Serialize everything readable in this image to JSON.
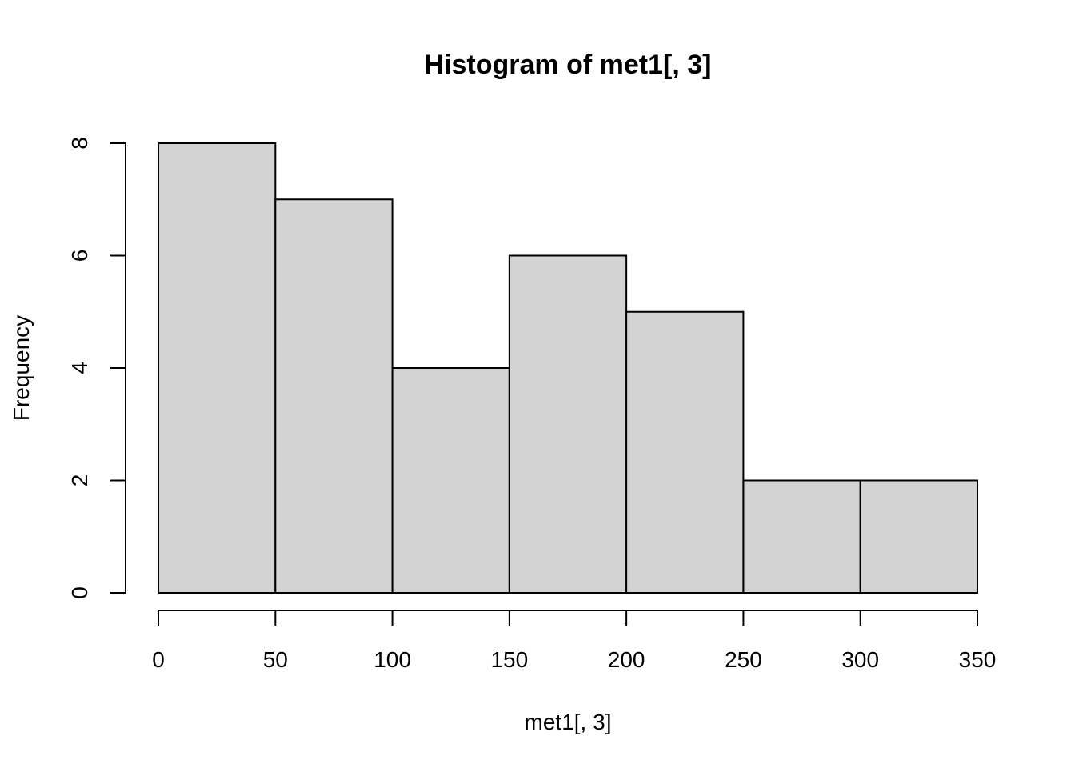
{
  "chart_data": {
    "type": "bar",
    "title": "Histogram of met1[, 3]",
    "xlabel": "met1[, 3]",
    "ylabel": "Frequency",
    "bins": [
      {
        "from": 0,
        "to": 50,
        "count": 8
      },
      {
        "from": 50,
        "to": 100,
        "count": 7
      },
      {
        "from": 100,
        "to": 150,
        "count": 4
      },
      {
        "from": 150,
        "to": 200,
        "count": 6
      },
      {
        "from": 200,
        "to": 250,
        "count": 5
      },
      {
        "from": 250,
        "to": 300,
        "count": 2
      },
      {
        "from": 300,
        "to": 350,
        "count": 2
      }
    ],
    "xlim": [
      0,
      350
    ],
    "ylim": [
      0,
      8
    ],
    "x_ticks": [
      "0",
      "50",
      "100",
      "150",
      "200",
      "250",
      "300",
      "350"
    ],
    "y_ticks": [
      "0",
      "2",
      "4",
      "6",
      "8"
    ],
    "bar_fill": "#d3d3d3",
    "bar_stroke": "#000000",
    "grid": false
  }
}
